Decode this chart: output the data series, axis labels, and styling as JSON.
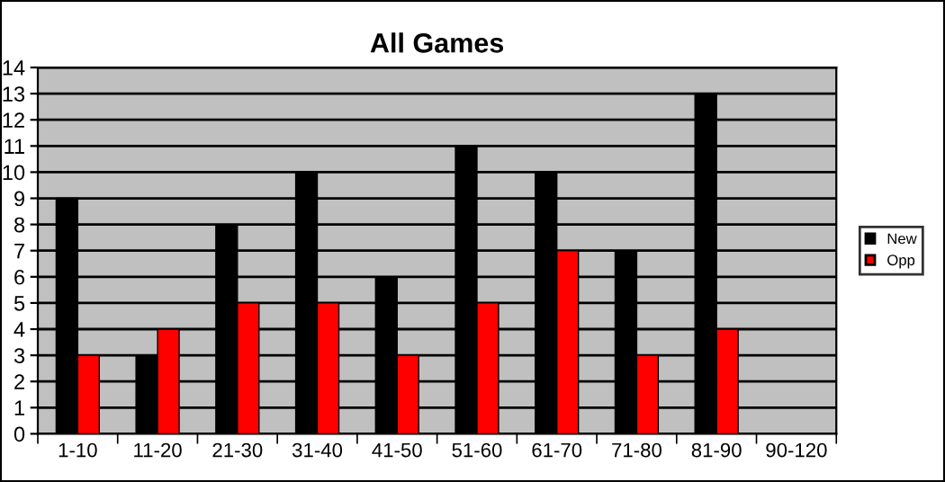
{
  "chart_data": {
    "type": "bar",
    "title": "All Games",
    "categories": [
      "1-10",
      "11-20",
      "21-30",
      "31-40",
      "41-50",
      "51-60",
      "61-70",
      "71-80",
      "81-90",
      "90-120"
    ],
    "series": [
      {
        "name": "New",
        "color": "#000000",
        "values": [
          9,
          3,
          8,
          10,
          6,
          11,
          10,
          7,
          13,
          null
        ]
      },
      {
        "name": "Opp",
        "color": "#ff0000",
        "values": [
          3,
          4,
          5,
          5,
          3,
          5,
          7,
          3,
          4,
          null
        ]
      }
    ],
    "ylim": [
      0,
      14
    ],
    "yticks": [
      0,
      1,
      2,
      3,
      4,
      5,
      6,
      7,
      8,
      9,
      10,
      11,
      12,
      13,
      14
    ],
    "grid": "y",
    "legend": "right"
  }
}
